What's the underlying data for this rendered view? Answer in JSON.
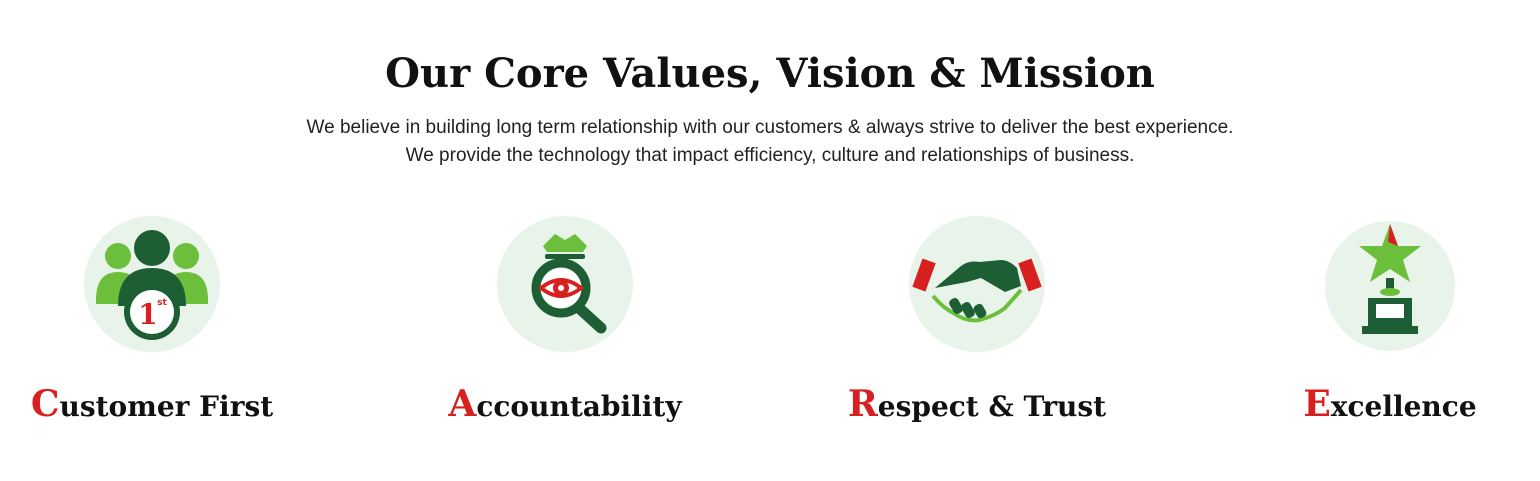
{
  "header": {
    "title": "Our Core Values, Vision & Mission",
    "description_line1": "We believe in building long term relationship with our customers & always strive to deliver the best experience.",
    "description_line2": "We provide the technology that impact efficiency, culture and relationships of business."
  },
  "values": [
    {
      "initial": "C",
      "rest": "ustomer First",
      "icon": "customer-first-icon",
      "badge": "1",
      "badge_sup": "st"
    },
    {
      "initial": "A",
      "rest": "ccountability",
      "icon": "magnifier-eye-icon"
    },
    {
      "initial": "R",
      "rest": "espect & Trust",
      "icon": "handshake-icon"
    },
    {
      "initial": "E",
      "rest": "xcellence",
      "icon": "star-trophy-icon"
    }
  ],
  "colors": {
    "dark_green": "#1d5e34",
    "light_green": "#6cbf3b",
    "circle_bg": "#e8f4ea",
    "accent_red": "#d7201f",
    "text": "#111111"
  }
}
